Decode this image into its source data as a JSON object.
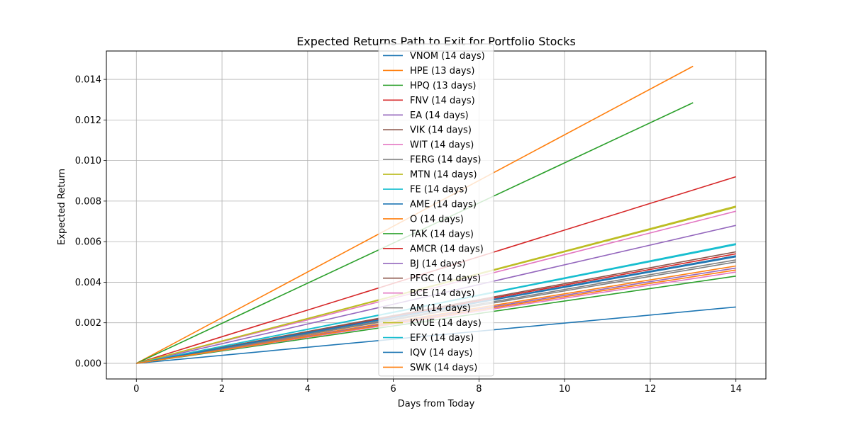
{
  "chart_data": {
    "type": "line",
    "title": "Expected Returns Path to Exit for Portfolio Stocks",
    "xlabel": "Days from Today",
    "ylabel": "Expected Return",
    "xlim": [
      -0.7,
      14.7
    ],
    "ylim": [
      -0.00077,
      0.0154
    ],
    "xticks": [
      0,
      2,
      4,
      6,
      8,
      10,
      12,
      14
    ],
    "xtick_labels": [
      "0",
      "2",
      "4",
      "6",
      "8",
      "10",
      "12",
      "14"
    ],
    "yticks": [
      0,
      0.002,
      0.004,
      0.006,
      0.008,
      0.01,
      0.012,
      0.014
    ],
    "ytick_labels": [
      "0.000",
      "0.002",
      "0.004",
      "0.006",
      "0.008",
      "0.010",
      "0.012",
      "0.014"
    ],
    "grid": true,
    "legend_position": "center",
    "series": [
      {
        "name": "VNOM (14 days)",
        "color": "#1f77b4",
        "x": [
          0,
          14
        ],
        "y": [
          0,
          0.00278
        ]
      },
      {
        "name": "HPE (13 days)",
        "color": "#ff7f0e",
        "x": [
          0,
          13
        ],
        "y": [
          0,
          0.01465
        ]
      },
      {
        "name": "HPQ (13 days)",
        "color": "#2ca02c",
        "x": [
          0,
          13
        ],
        "y": [
          0,
          0.01285
        ]
      },
      {
        "name": "FNV (14 days)",
        "color": "#d62728",
        "x": [
          0,
          14
        ],
        "y": [
          0,
          0.0092
        ]
      },
      {
        "name": "EA (14 days)",
        "color": "#9467bd",
        "x": [
          0,
          14
        ],
        "y": [
          0,
          0.0068
        ]
      },
      {
        "name": "VIK (14 days)",
        "color": "#8c564b",
        "x": [
          0,
          14
        ],
        "y": [
          0,
          0.0053
        ]
      },
      {
        "name": "WIT (14 days)",
        "color": "#e377c2",
        "x": [
          0,
          14
        ],
        "y": [
          0,
          0.0075
        ]
      },
      {
        "name": "FERG (14 days)",
        "color": "#7f7f7f",
        "x": [
          0,
          14
        ],
        "y": [
          0,
          0.0051
        ]
      },
      {
        "name": "MTN (14 days)",
        "color": "#bcbd22",
        "x": [
          0,
          14
        ],
        "y": [
          0,
          0.00775
        ]
      },
      {
        "name": "FE (14 days)",
        "color": "#17becf",
        "x": [
          0,
          14
        ],
        "y": [
          0,
          0.00585
        ]
      },
      {
        "name": "AME (14 days)",
        "color": "#1f77b4",
        "x": [
          0,
          14
        ],
        "y": [
          0,
          0.00525
        ]
      },
      {
        "name": "O (14 days)",
        "color": "#ff7f0e",
        "x": [
          0,
          14
        ],
        "y": [
          0,
          0.0048
        ]
      },
      {
        "name": "TAK (14 days)",
        "color": "#2ca02c",
        "x": [
          0,
          14
        ],
        "y": [
          0,
          0.0043
        ]
      },
      {
        "name": "AMCR (14 days)",
        "color": "#d62728",
        "x": [
          0,
          14
        ],
        "y": [
          0,
          0.0054
        ]
      },
      {
        "name": "BJ (14 days)",
        "color": "#9467bd",
        "x": [
          0,
          14
        ],
        "y": [
          0,
          0.0047
        ]
      },
      {
        "name": "PFGC (14 days)",
        "color": "#8c564b",
        "x": [
          0,
          14
        ],
        "y": [
          0,
          0.0055
        ]
      },
      {
        "name": "BCE (14 days)",
        "color": "#e377c2",
        "x": [
          0,
          14
        ],
        "y": [
          0,
          0.0045
        ]
      },
      {
        "name": "AM (14 days)",
        "color": "#7f7f7f",
        "x": [
          0,
          14
        ],
        "y": [
          0,
          0.005
        ]
      },
      {
        "name": "KVUE (14 days)",
        "color": "#bcbd22",
        "x": [
          0,
          14
        ],
        "y": [
          0,
          0.0077
        ]
      },
      {
        "name": "EFX (14 days)",
        "color": "#17becf",
        "x": [
          0,
          14
        ],
        "y": [
          0,
          0.0059
        ]
      },
      {
        "name": "IQV (14 days)",
        "color": "#1f77b4",
        "x": [
          0,
          14
        ],
        "y": [
          0,
          0.0053
        ]
      },
      {
        "name": "SWK (14 days)",
        "color": "#ff7f0e",
        "x": [
          0,
          14
        ],
        "y": [
          0,
          0.0046
        ]
      }
    ]
  }
}
